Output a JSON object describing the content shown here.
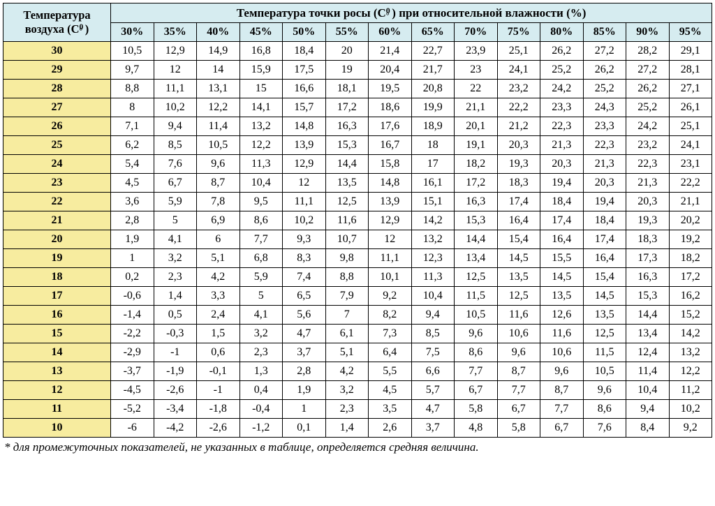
{
  "table": {
    "type": "table",
    "colors": {
      "header_bg": "#d6ecf0",
      "rowheader_bg": "#f7ec9f",
      "cell_bg": "#ffffff",
      "border": "#000000",
      "text": "#000000"
    },
    "typography": {
      "header_title_fontsize": 17,
      "col_header_fontsize": 16,
      "row_header_fontsize": 16,
      "cell_fontsize": 16,
      "footnote_fontsize": 17,
      "font_family": "Times New Roman"
    },
    "row_header_title_line1": "Температура",
    "row_header_title_line2": "воздуха (C°)",
    "main_header": "Температура точки росы (C°) при относительной влажности (%)",
    "humidity_columns": [
      "30%",
      "35%",
      "40%",
      "45%",
      "50%",
      "55%",
      "60%",
      "65%",
      "70%",
      "75%",
      "80%",
      "85%",
      "90%",
      "95%"
    ],
    "temp_rows": [
      "30",
      "29",
      "28",
      "27",
      "26",
      "25",
      "24",
      "23",
      "22",
      "21",
      "20",
      "19",
      "18",
      "17",
      "16",
      "15",
      "14",
      "13",
      "12",
      "11",
      "10"
    ],
    "data": [
      [
        "10,5",
        "12,9",
        "14,9",
        "16,8",
        "18,4",
        "20",
        "21,4",
        "22,7",
        "23,9",
        "25,1",
        "26,2",
        "27,2",
        "28,2",
        "29,1"
      ],
      [
        "9,7",
        "12",
        "14",
        "15,9",
        "17,5",
        "19",
        "20,4",
        "21,7",
        "23",
        "24,1",
        "25,2",
        "26,2",
        "27,2",
        "28,1"
      ],
      [
        "8,8",
        "11,1",
        "13,1",
        "15",
        "16,6",
        "18,1",
        "19,5",
        "20,8",
        "22",
        "23,2",
        "24,2",
        "25,2",
        "26,2",
        "27,1"
      ],
      [
        "8",
        "10,2",
        "12,2",
        "14,1",
        "15,7",
        "17,2",
        "18,6",
        "19,9",
        "21,1",
        "22,2",
        "23,3",
        "24,3",
        "25,2",
        "26,1"
      ],
      [
        "7,1",
        "9,4",
        "11,4",
        "13,2",
        "14,8",
        "16,3",
        "17,6",
        "18,9",
        "20,1",
        "21,2",
        "22,3",
        "23,3",
        "24,2",
        "25,1"
      ],
      [
        "6,2",
        "8,5",
        "10,5",
        "12,2",
        "13,9",
        "15,3",
        "16,7",
        "18",
        "19,1",
        "20,3",
        "21,3",
        "22,3",
        "23,2",
        "24,1"
      ],
      [
        "5,4",
        "7,6",
        "9,6",
        "11,3",
        "12,9",
        "14,4",
        "15,8",
        "17",
        "18,2",
        "19,3",
        "20,3",
        "21,3",
        "22,3",
        "23,1"
      ],
      [
        "4,5",
        "6,7",
        "8,7",
        "10,4",
        "12",
        "13,5",
        "14,8",
        "16,1",
        "17,2",
        "18,3",
        "19,4",
        "20,3",
        "21,3",
        "22,2"
      ],
      [
        "3,6",
        "5,9",
        "7,8",
        "9,5",
        "11,1",
        "12,5",
        "13,9",
        "15,1",
        "16,3",
        "17,4",
        "18,4",
        "19,4",
        "20,3",
        "21,1"
      ],
      [
        "2,8",
        "5",
        "6,9",
        "8,6",
        "10,2",
        "11,6",
        "12,9",
        "14,2",
        "15,3",
        "16,4",
        "17,4",
        "18,4",
        "19,3",
        "20,2"
      ],
      [
        "1,9",
        "4,1",
        "6",
        "7,7",
        "9,3",
        "10,7",
        "12",
        "13,2",
        "14,4",
        "15,4",
        "16,4",
        "17,4",
        "18,3",
        "19,2"
      ],
      [
        "1",
        "3,2",
        "5,1",
        "6,8",
        "8,3",
        "9,8",
        "11,1",
        "12,3",
        "13,4",
        "14,5",
        "15,5",
        "16,4",
        "17,3",
        "18,2"
      ],
      [
        "0,2",
        "2,3",
        "4,2",
        "5,9",
        "7,4",
        "8,8",
        "10,1",
        "11,3",
        "12,5",
        "13,5",
        "14,5",
        "15,4",
        "16,3",
        "17,2"
      ],
      [
        "-0,6",
        "1,4",
        "3,3",
        "5",
        "6,5",
        "7,9",
        "9,2",
        "10,4",
        "11,5",
        "12,5",
        "13,5",
        "14,5",
        "15,3",
        "16,2"
      ],
      [
        "-1,4",
        "0,5",
        "2,4",
        "4,1",
        "5,6",
        "7",
        "8,2",
        "9,4",
        "10,5",
        "11,6",
        "12,6",
        "13,5",
        "14,4",
        "15,2"
      ],
      [
        "-2,2",
        "-0,3",
        "1,5",
        "3,2",
        "4,7",
        "6,1",
        "7,3",
        "8,5",
        "9,6",
        "10,6",
        "11,6",
        "12,5",
        "13,4",
        "14,2"
      ],
      [
        "-2,9",
        "-1",
        "0,6",
        "2,3",
        "3,7",
        "5,1",
        "6,4",
        "7,5",
        "8,6",
        "9,6",
        "10,6",
        "11,5",
        "12,4",
        "13,2"
      ],
      [
        "-3,7",
        "-1,9",
        "-0,1",
        "1,3",
        "2,8",
        "4,2",
        "5,5",
        "6,6",
        "7,7",
        "8,7",
        "9,6",
        "10,5",
        "11,4",
        "12,2"
      ],
      [
        "-4,5",
        "-2,6",
        "-1",
        "0,4",
        "1,9",
        "3,2",
        "4,5",
        "5,7",
        "6,7",
        "7,7",
        "8,7",
        "9,6",
        "10,4",
        "11,2"
      ],
      [
        "-5,2",
        "-3,4",
        "-1,8",
        "-0,4",
        "1",
        "2,3",
        "3,5",
        "4,7",
        "5,8",
        "6,7",
        "7,7",
        "8,6",
        "9,4",
        "10,2"
      ],
      [
        "-6",
        "-4,2",
        "-2,6",
        "-1,2",
        "0,1",
        "1,4",
        "2,6",
        "3,7",
        "4,8",
        "5,8",
        "6,7",
        "7,6",
        "8,4",
        "9,2"
      ]
    ],
    "footnote": "* для промежуточных показателей, не указанных в таблице, определяется средняя величина."
  }
}
